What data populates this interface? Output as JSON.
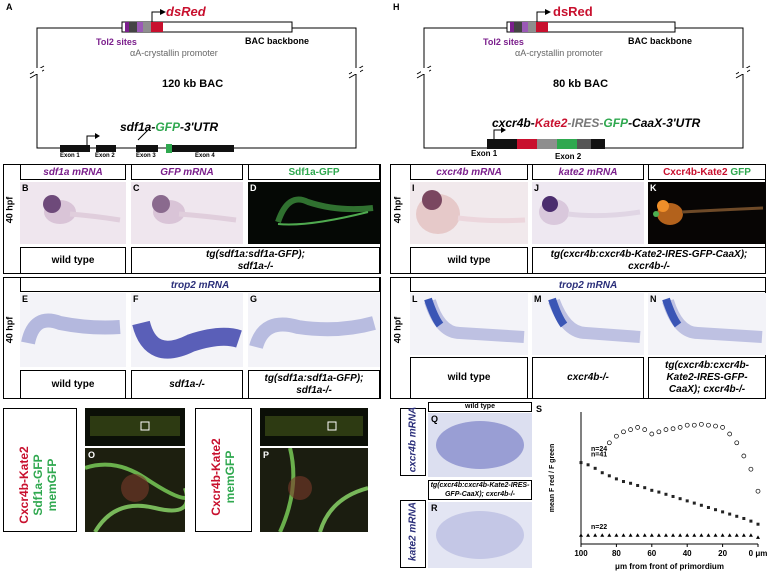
{
  "panelA": {
    "letter": "A",
    "promoter_label": "dsRed",
    "tol2": "Tol2 sites",
    "crystallin": "αA-crystallin promoter",
    "bac_backbone": "BAC backbone",
    "bac_size": "120 kb BAC",
    "construct_prefix": "sdf1a-",
    "construct_gfp": "GFP",
    "construct_suffix": "-3'UTR",
    "exons": [
      "Exon 1",
      "Exon 2",
      "Exon 3",
      "Exon 4"
    ]
  },
  "panelH": {
    "letter": "H",
    "promoter_label": "dsRed",
    "tol2": "Tol2 sites",
    "crystallin": "αA-crystallin promoter",
    "bac_backbone": "BAC backbone",
    "bac_size": "80 kb BAC",
    "c1": "cxcr4b-",
    "c2": "Kate2",
    "c3": "-IRES-",
    "c4": "GFP",
    "c5": "-CaaX-3'UTR",
    "exons": [
      "Exon 1",
      "Exon 2"
    ]
  },
  "row1_left": {
    "headers": [
      "sdf1a mRNA",
      "GFP mRNA",
      "Sdf1a-GFP"
    ],
    "letters": [
      "B",
      "C",
      "D"
    ],
    "hpf": "40 hpf",
    "genotype1": "wild type",
    "genotype2": "tg(sdf1a:sdf1a-GFP); sdf1a-/-"
  },
  "row2_left": {
    "header": "trop2 mRNA",
    "letters": [
      "E",
      "F",
      "G"
    ],
    "hpf": "40 hpf",
    "genotypes": [
      "wild type",
      "sdf1a-/-",
      "tg(sdf1a:sdf1a-GFP); sdf1a-/-"
    ]
  },
  "row1_right": {
    "headers": [
      "cxcr4b mRNA",
      "kate2 mRNA"
    ],
    "header3_red": "Cxcr4b-Kate2",
    "header3_green": "GFP",
    "letters": [
      "I",
      "J",
      "K"
    ],
    "hpf": "40 hpf",
    "genotype1": "wild type",
    "genotype2": "tg(cxcr4b:cxcr4b-Kate2-IRES-GFP-CaaX); cxcr4b-/-"
  },
  "row2_right": {
    "header": "trop2 mRNA",
    "letters": [
      "L",
      "M",
      "N"
    ],
    "hpf": "40 hpf",
    "genotypes": [
      "wild type",
      "cxcr4b-/-",
      "tg(cxcr4b:cxcr4b-Kate2-IRES-GFP-CaaX); cxcr4b-/-"
    ]
  },
  "bottom_left": {
    "labelO_red": "Cxcr4b-Kate2",
    "labelO_green1": "Sdf1a-GFP",
    "labelO_green2": "memGFP",
    "letterO": "O",
    "labelP_red": "Cxcr4b-Kate2",
    "labelP_green": "memGFP",
    "letterP": "P"
  },
  "bottom_mid": {
    "q_title": "wild type",
    "q_letter": "Q",
    "q_side": "cxcr4b mRNA",
    "r_title": "tg(cxcr4b:cxcr4b-Kate2-IRES-GFP-CaaX); cxcr4b-/-",
    "r_letter": "R",
    "r_side": "kate2 mRNA"
  },
  "chart_data": {
    "type": "scatter",
    "letter": "S",
    "xlabel": "μm from front of primordium",
    "ylabel": "mean F red / F green",
    "x_ticks": [
      "100",
      "80",
      "60",
      "40",
      "20",
      "0 μm"
    ],
    "xlim": [
      100,
      0
    ],
    "series": [
      {
        "name": "n=24",
        "x": [
          100,
          96,
          92,
          88,
          84,
          80,
          76,
          72,
          68,
          64,
          60,
          56,
          52,
          48,
          44,
          40,
          36,
          32,
          28,
          24,
          20,
          16,
          12,
          8,
          4,
          0
        ],
        "y": [
          null,
          null,
          null,
          null,
          2.3,
          2.45,
          2.55,
          2.6,
          2.65,
          2.6,
          2.5,
          2.55,
          2.6,
          2.62,
          2.65,
          2.7,
          2.7,
          2.72,
          2.7,
          2.68,
          2.65,
          2.5,
          2.3,
          2.0,
          1.7,
          1.2
        ]
      },
      {
        "name": "n=41",
        "x": [
          100,
          96,
          92,
          88,
          84,
          80,
          76,
          72,
          68,
          64,
          60,
          56,
          52,
          48,
          44,
          40,
          36,
          32,
          28,
          24,
          20,
          16,
          12,
          8,
          4,
          0
        ],
        "y": [
          1.85,
          1.8,
          1.72,
          1.62,
          1.55,
          1.48,
          1.42,
          1.38,
          1.33,
          1.28,
          1.22,
          1.18,
          1.13,
          1.08,
          1.03,
          0.98,
          0.93,
          0.88,
          0.83,
          0.78,
          0.73,
          0.68,
          0.63,
          0.58,
          0.52,
          0.45
        ]
      },
      {
        "name": "n=22",
        "x": [
          100,
          96,
          92,
          88,
          84,
          80,
          76,
          72,
          68,
          64,
          60,
          56,
          52,
          48,
          44,
          40,
          36,
          32,
          28,
          24,
          20,
          16,
          12,
          8,
          4,
          0
        ],
        "y": [
          0.2,
          0.2,
          0.2,
          0.2,
          0.2,
          0.2,
          0.2,
          0.2,
          0.2,
          0.2,
          0.2,
          0.2,
          0.2,
          0.2,
          0.2,
          0.2,
          0.2,
          0.2,
          0.2,
          0.2,
          0.2,
          0.2,
          0.2,
          0.2,
          0.2,
          0.15
        ]
      }
    ],
    "ylim": [
      0,
      3
    ]
  },
  "colors": {
    "purple": "#7b1f8c",
    "navy": "#2b2f7a",
    "red": "#c8102e",
    "green": "#2fa84f"
  }
}
